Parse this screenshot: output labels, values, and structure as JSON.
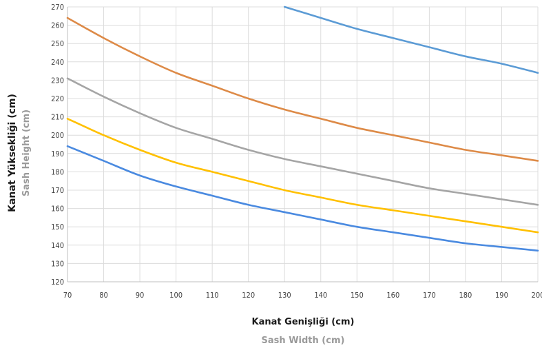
{
  "chart_data": {
    "type": "line",
    "title": "",
    "xlabel": "Kanat Genişliği (cm)",
    "xlabel_sub": "Sash Width  (cm)",
    "ylabel": "Kanat Yüksekliği (cm)",
    "ylabel_sub": "Sash Height  (cm)",
    "xlim": [
      70,
      200
    ],
    "ylim": [
      120,
      270
    ],
    "xticks": [
      70,
      80,
      90,
      100,
      110,
      120,
      130,
      140,
      150,
      160,
      170,
      180,
      190,
      200
    ],
    "xtick_labels": [
      "70",
      "80",
      "90",
      "100",
      "110",
      "120",
      "130",
      "140",
      "150",
      "160",
      "170",
      "180",
      "190",
      "200"
    ],
    "yticks": [
      120,
      130,
      140,
      150,
      160,
      170,
      180,
      190,
      200,
      210,
      220,
      230,
      240,
      250,
      260,
      270
    ],
    "ytick_labels": [
      "120",
      "130",
      "140",
      "150",
      "160",
      "170",
      "180",
      "190",
      "200",
      "210",
      "220",
      "230",
      "240",
      "250",
      "260",
      "270"
    ],
    "grid": true,
    "legend": false,
    "series": [
      {
        "color": "#5b9bd5",
        "x": [
          130,
          140,
          150,
          160,
          170,
          180,
          190,
          200
        ],
        "values": [
          270,
          264,
          258,
          253,
          248,
          243,
          239,
          234
        ]
      },
      {
        "color": "#dd8a47",
        "x": [
          70,
          80,
          90,
          100,
          110,
          120,
          130,
          140,
          150,
          160,
          170,
          180,
          190,
          200
        ],
        "values": [
          264,
          253,
          243,
          234,
          227,
          220,
          214,
          209,
          204,
          200,
          196,
          192,
          189,
          186
        ]
      },
      {
        "color": "#a5a5a5",
        "x": [
          70,
          80,
          90,
          100,
          110,
          120,
          130,
          140,
          150,
          160,
          170,
          180,
          190,
          200
        ],
        "values": [
          231,
          221,
          212,
          204,
          198,
          192,
          187,
          183,
          179,
          175,
          171,
          168,
          165,
          162
        ]
      },
      {
        "color": "#ffc000",
        "x": [
          70,
          80,
          90,
          100,
          110,
          120,
          130,
          140,
          150,
          160,
          170,
          180,
          190,
          200
        ],
        "values": [
          209,
          200,
          192,
          185,
          180,
          175,
          170,
          166,
          162,
          159,
          156,
          153,
          150,
          147
        ]
      },
      {
        "color": "#4a8ae0",
        "x": [
          70,
          80,
          90,
          100,
          110,
          120,
          130,
          140,
          150,
          160,
          170,
          180,
          190,
          200
        ],
        "values": [
          194,
          186,
          178,
          172,
          167,
          162,
          158,
          154,
          150,
          147,
          144,
          141,
          139,
          137
        ]
      }
    ]
  }
}
